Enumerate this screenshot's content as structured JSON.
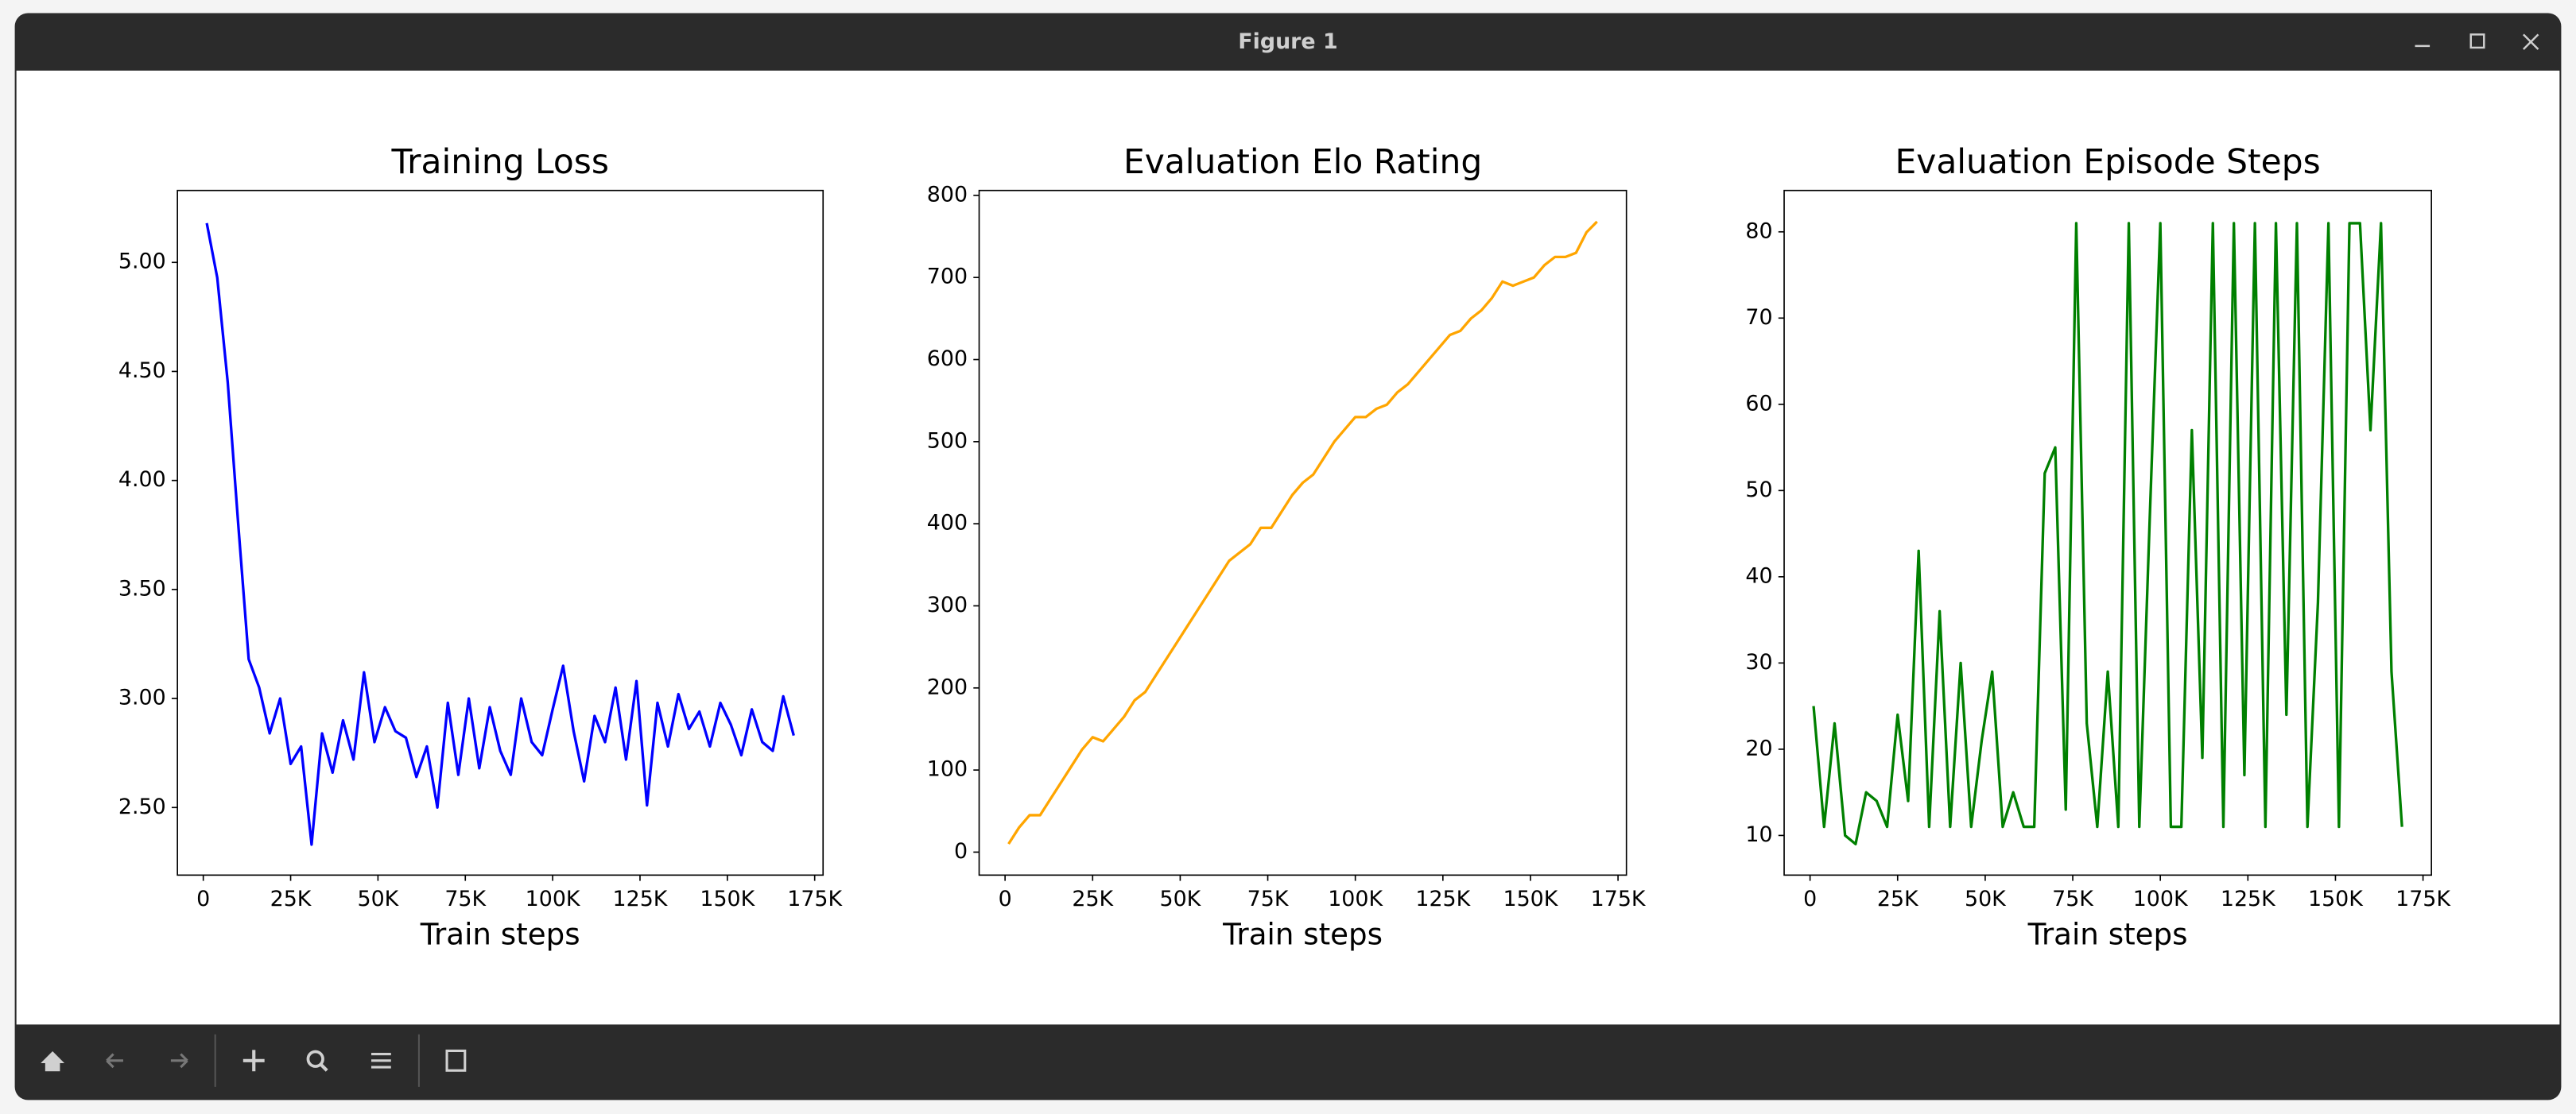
{
  "window": {
    "title": "Figure 1"
  },
  "chart_data": [
    {
      "type": "line",
      "title": "Training Loss",
      "xlabel": "Train steps",
      "color": "#0000ff",
      "x": [
        1000,
        4000,
        7000,
        10000,
        13000,
        16000,
        19000,
        22000,
        25000,
        28000,
        31000,
        34000,
        37000,
        40000,
        43000,
        46000,
        49000,
        52000,
        55000,
        58000,
        61000,
        64000,
        67000,
        70000,
        73000,
        76000,
        79000,
        82000,
        85000,
        88000,
        91000,
        94000,
        97000,
        100000,
        103000,
        106000,
        109000,
        112000,
        115000,
        118000,
        121000,
        124000,
        127000,
        130000,
        133000,
        136000,
        139000,
        142000,
        145000,
        148000,
        151000,
        154000,
        157000,
        160000,
        163000,
        166000,
        169000
      ],
      "values": [
        5.18,
        4.93,
        4.45,
        3.8,
        3.18,
        3.05,
        2.84,
        3.0,
        2.7,
        2.78,
        2.33,
        2.84,
        2.66,
        2.9,
        2.72,
        3.12,
        2.8,
        2.96,
        2.85,
        2.82,
        2.64,
        2.78,
        2.5,
        2.98,
        2.65,
        3.0,
        2.68,
        2.96,
        2.76,
        2.65,
        3.0,
        2.8,
        2.74,
        2.95,
        3.15,
        2.85,
        2.62,
        2.92,
        2.8,
        3.05,
        2.72,
        3.08,
        2.51,
        2.98,
        2.78,
        3.02,
        2.86,
        2.94,
        2.78,
        2.98,
        2.88,
        2.74,
        2.95,
        2.8,
        2.76,
        3.01,
        2.83
      ],
      "xlim": [
        -7400,
        177400
      ],
      "xticks": [
        0,
        {
          "value": 25000,
          "label": "25K"
        },
        {
          "value": 50000,
          "label": "50K"
        },
        {
          "value": 75000,
          "label": "75K"
        },
        {
          "value": 100000,
          "label": "100K"
        },
        {
          "value": 125000,
          "label": "125K"
        },
        {
          "value": 150000,
          "label": "150K"
        },
        {
          "value": 175000,
          "label": "175K"
        }
      ],
      "ylim": [
        2.19,
        5.33
      ],
      "yticks": [
        {
          "value": 2.5,
          "label": "2.50"
        },
        {
          "value": 3,
          "label": "3.00"
        },
        {
          "value": 3.5,
          "label": "3.50"
        },
        {
          "value": 4,
          "label": "4.00"
        },
        {
          "value": 4.5,
          "label": "4.50"
        },
        {
          "value": 5,
          "label": "5.00"
        }
      ]
    },
    {
      "type": "line",
      "title": "Evaluation Elo Rating",
      "xlabel": "Train steps",
      "color": "#ffa500",
      "x": [
        1000,
        4000,
        7000,
        10000,
        13000,
        16000,
        19000,
        22000,
        25000,
        28000,
        31000,
        34000,
        37000,
        40000,
        43000,
        46000,
        49000,
        52000,
        55000,
        58000,
        61000,
        64000,
        67000,
        70000,
        73000,
        76000,
        79000,
        82000,
        85000,
        88000,
        91000,
        94000,
        97000,
        100000,
        103000,
        106000,
        109000,
        112000,
        115000,
        118000,
        121000,
        124000,
        127000,
        130000,
        133000,
        136000,
        139000,
        142000,
        145000,
        148000,
        151000,
        154000,
        157000,
        160000,
        163000,
        166000,
        169000
      ],
      "values": [
        10,
        30,
        45,
        45,
        65,
        85,
        105,
        125,
        140,
        135,
        150,
        165,
        185,
        195,
        215,
        235,
        255,
        275,
        295,
        315,
        335,
        355,
        365,
        375,
        395,
        395,
        415,
        435,
        450,
        460,
        480,
        500,
        515,
        530,
        530,
        540,
        545,
        560,
        570,
        585,
        600,
        615,
        630,
        635,
        650,
        660,
        675,
        695,
        690,
        695,
        700,
        715,
        725,
        725,
        730,
        755,
        768
      ],
      "xlim": [
        -7400,
        177400
      ],
      "xticks": [
        0,
        {
          "value": 25000,
          "label": "25K"
        },
        {
          "value": 50000,
          "label": "50K"
        },
        {
          "value": 75000,
          "label": "75K"
        },
        {
          "value": 100000,
          "label": "100K"
        },
        {
          "value": 125000,
          "label": "125K"
        },
        {
          "value": 150000,
          "label": "150K"
        },
        {
          "value": 175000,
          "label": "175K"
        }
      ],
      "ylim": [
        -28,
        806
      ],
      "yticks": [
        0,
        100,
        200,
        300,
        400,
        500,
        600,
        700,
        800
      ]
    },
    {
      "type": "line",
      "title": "Evaluation Episode Steps",
      "xlabel": "Train steps",
      "color": "#008000",
      "x": [
        1000,
        4000,
        7000,
        10000,
        13000,
        16000,
        19000,
        22000,
        25000,
        28000,
        31000,
        34000,
        37000,
        40000,
        43000,
        46000,
        49000,
        52000,
        55000,
        58000,
        61000,
        64000,
        67000,
        70000,
        73000,
        76000,
        79000,
        82000,
        85000,
        88000,
        91000,
        94000,
        97000,
        100000,
        103000,
        106000,
        109000,
        112000,
        115000,
        118000,
        121000,
        124000,
        127000,
        130000,
        133000,
        136000,
        139000,
        142000,
        145000,
        148000,
        151000,
        154000,
        157000,
        160000,
        163000,
        166000,
        169000
      ],
      "values": [
        25,
        11,
        23,
        10,
        9,
        15,
        14,
        11,
        24,
        14,
        43,
        11,
        36,
        11,
        30,
        11,
        21,
        29,
        11,
        15,
        11,
        11,
        52,
        55,
        13,
        81,
        23,
        11,
        29,
        11,
        81,
        11,
        47,
        81,
        11,
        11,
        57,
        19,
        81,
        11,
        81,
        17,
        81,
        11,
        81,
        24,
        81,
        11,
        37,
        81,
        11,
        81,
        81,
        57,
        81,
        29,
        11
      ],
      "xlim": [
        -7400,
        177400
      ],
      "xticks": [
        0,
        {
          "value": 25000,
          "label": "25K"
        },
        {
          "value": 50000,
          "label": "50K"
        },
        {
          "value": 75000,
          "label": "75K"
        },
        {
          "value": 100000,
          "label": "100K"
        },
        {
          "value": 125000,
          "label": "125K"
        },
        {
          "value": 150000,
          "label": "150K"
        },
        {
          "value": 175000,
          "label": "175K"
        }
      ],
      "ylim": [
        5.4,
        84.8
      ],
      "yticks": [
        10,
        20,
        30,
        40,
        50,
        60,
        70,
        80
      ]
    }
  ]
}
